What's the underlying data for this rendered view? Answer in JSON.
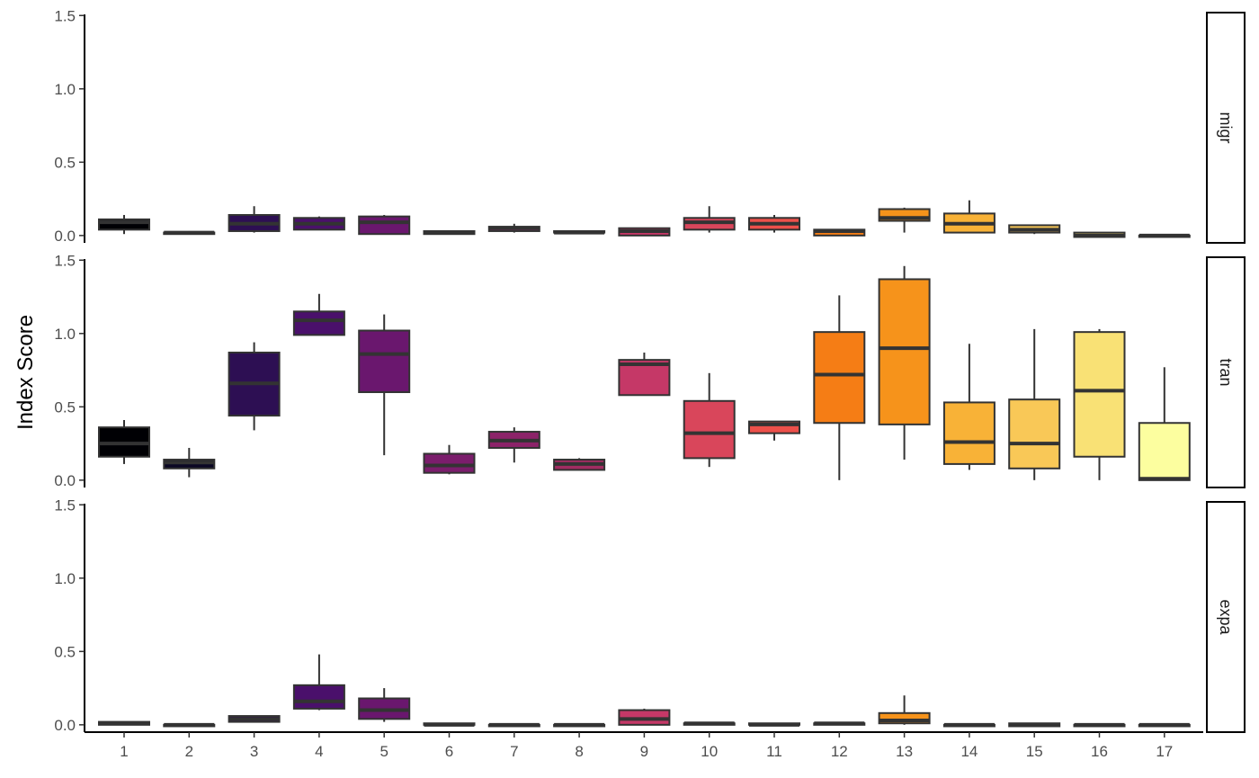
{
  "chart_data": {
    "type": "boxplot",
    "facet_layout": "vertical",
    "ylabel": "Index Score",
    "xlabel": "",
    "categories": [
      "1",
      "2",
      "3",
      "4",
      "5",
      "6",
      "7",
      "8",
      "9",
      "10",
      "11",
      "12",
      "13",
      "14",
      "15",
      "16",
      "17"
    ],
    "ylim": [
      -0.05,
      1.52
    ],
    "yticks": [
      0.0,
      0.5,
      1.0,
      1.5
    ],
    "ytick_labels": [
      "0.0",
      "0.5",
      "1.0",
      "1.5"
    ],
    "grid": false,
    "legend": "none",
    "colors": [
      "#000004",
      "#0b0724",
      "#2d0f53",
      "#4a106b",
      "#6a176e",
      "#7b1d6c",
      "#8c2369",
      "#a22c62",
      "#c53867",
      "#d9465b",
      "#ed504a",
      "#f57d15",
      "#f6931b",
      "#f8b237",
      "#f9c857",
      "#f9e175",
      "#fcfe9f"
    ],
    "facets": [
      {
        "label": "migr",
        "boxes": [
          {
            "min": 0.01,
            "q1": 0.04,
            "median": 0.09,
            "q3": 0.11,
            "max": 0.14
          },
          {
            "min": 0.01,
            "q1": 0.01,
            "median": 0.02,
            "q3": 0.02,
            "max": 0.03
          },
          {
            "min": 0.02,
            "q1": 0.03,
            "median": 0.08,
            "q3": 0.14,
            "max": 0.2
          },
          {
            "min": 0.04,
            "q1": 0.04,
            "median": 0.08,
            "q3": 0.12,
            "max": 0.13
          },
          {
            "min": 0.01,
            "q1": 0.01,
            "median": 0.09,
            "q3": 0.13,
            "max": 0.14
          },
          {
            "min": 0.01,
            "q1": 0.01,
            "median": 0.02,
            "q3": 0.03,
            "max": 0.03
          },
          {
            "min": 0.02,
            "q1": 0.03,
            "median": 0.05,
            "q3": 0.06,
            "max": 0.08
          },
          {
            "min": 0.01,
            "q1": 0.02,
            "median": 0.02,
            "q3": 0.03,
            "max": 0.03
          },
          {
            "min": 0.0,
            "q1": 0.0,
            "median": 0.03,
            "q3": 0.05,
            "max": 0.05
          },
          {
            "min": 0.02,
            "q1": 0.04,
            "median": 0.09,
            "q3": 0.12,
            "max": 0.2
          },
          {
            "min": 0.02,
            "q1": 0.04,
            "median": 0.08,
            "q3": 0.12,
            "max": 0.14
          },
          {
            "min": 0.0,
            "q1": 0.0,
            "median": 0.03,
            "q3": 0.04,
            "max": 0.04
          },
          {
            "min": 0.02,
            "q1": 0.1,
            "median": 0.12,
            "q3": 0.18,
            "max": 0.19
          },
          {
            "min": 0.02,
            "q1": 0.02,
            "median": 0.08,
            "q3": 0.15,
            "max": 0.24
          },
          {
            "min": 0.01,
            "q1": 0.02,
            "median": 0.04,
            "q3": 0.07,
            "max": 0.07
          },
          {
            "min": -0.01,
            "q1": -0.01,
            "median": 0.0,
            "q3": 0.02,
            "max": 0.02
          },
          {
            "min": -0.01,
            "q1": -0.01,
            "median": 0.0,
            "q3": 0.0,
            "max": 0.0
          }
        ]
      },
      {
        "label": "tran",
        "boxes": [
          {
            "min": 0.11,
            "q1": 0.16,
            "median": 0.25,
            "q3": 0.36,
            "max": 0.41
          },
          {
            "min": 0.02,
            "q1": 0.08,
            "median": 0.12,
            "q3": 0.14,
            "max": 0.22
          },
          {
            "min": 0.34,
            "q1": 0.44,
            "median": 0.66,
            "q3": 0.87,
            "max": 0.94
          },
          {
            "min": 0.99,
            "q1": 0.99,
            "median": 1.09,
            "q3": 1.15,
            "max": 1.27
          },
          {
            "min": 0.17,
            "q1": 0.6,
            "median": 0.86,
            "q3": 1.02,
            "max": 1.13
          },
          {
            "min": 0.04,
            "q1": 0.05,
            "median": 0.1,
            "q3": 0.18,
            "max": 0.24
          },
          {
            "min": 0.12,
            "q1": 0.22,
            "median": 0.27,
            "q3": 0.33,
            "max": 0.36
          },
          {
            "min": 0.07,
            "q1": 0.07,
            "median": 0.11,
            "q3": 0.14,
            "max": 0.15
          },
          {
            "min": 0.58,
            "q1": 0.58,
            "median": 0.79,
            "q3": 0.82,
            "max": 0.87
          },
          {
            "min": 0.09,
            "q1": 0.15,
            "median": 0.32,
            "q3": 0.54,
            "max": 0.73
          },
          {
            "min": 0.27,
            "q1": 0.32,
            "median": 0.38,
            "q3": 0.4,
            "max": 0.4
          },
          {
            "min": 0.0,
            "q1": 0.39,
            "median": 0.72,
            "q3": 1.01,
            "max": 1.26
          },
          {
            "min": 0.14,
            "q1": 0.38,
            "median": 0.9,
            "q3": 1.37,
            "max": 1.46
          },
          {
            "min": 0.07,
            "q1": 0.11,
            "median": 0.26,
            "q3": 0.53,
            "max": 0.93
          },
          {
            "min": 0.0,
            "q1": 0.08,
            "median": 0.25,
            "q3": 0.55,
            "max": 1.03
          },
          {
            "min": 0.0,
            "q1": 0.16,
            "median": 0.61,
            "q3": 1.01,
            "max": 1.03
          },
          {
            "min": 0.0,
            "q1": 0.0,
            "median": 0.01,
            "q3": 0.39,
            "max": 0.77
          }
        ]
      },
      {
        "label": "expa",
        "boxes": [
          {
            "min": 0.0,
            "q1": 0.0,
            "median": 0.01,
            "q3": 0.02,
            "max": 0.02
          },
          {
            "min": -0.01,
            "q1": -0.01,
            "median": 0.0,
            "q3": 0.0,
            "max": 0.0
          },
          {
            "min": 0.02,
            "q1": 0.02,
            "median": 0.04,
            "q3": 0.06,
            "max": 0.06
          },
          {
            "min": 0.1,
            "q1": 0.11,
            "median": 0.16,
            "q3": 0.27,
            "max": 0.48
          },
          {
            "min": 0.02,
            "q1": 0.04,
            "median": 0.1,
            "q3": 0.18,
            "max": 0.25
          },
          {
            "min": 0.0,
            "q1": 0.0,
            "median": 0.0,
            "q3": 0.01,
            "max": 0.01
          },
          {
            "min": -0.01,
            "q1": -0.01,
            "median": 0.0,
            "q3": 0.0,
            "max": 0.01
          },
          {
            "min": -0.01,
            "q1": -0.01,
            "median": 0.0,
            "q3": 0.0,
            "max": 0.0
          },
          {
            "min": 0.0,
            "q1": 0.0,
            "median": 0.04,
            "q3": 0.1,
            "max": 0.11
          },
          {
            "min": 0.0,
            "q1": 0.0,
            "median": 0.01,
            "q3": 0.01,
            "max": 0.01
          },
          {
            "min": 0.0,
            "q1": 0.0,
            "median": 0.0,
            "q3": 0.01,
            "max": 0.01
          },
          {
            "min": 0.0,
            "q1": 0.0,
            "median": 0.01,
            "q3": 0.01,
            "max": 0.01
          },
          {
            "min": 0.0,
            "q1": 0.01,
            "median": 0.03,
            "q3": 0.08,
            "max": 0.2
          },
          {
            "min": -0.01,
            "q1": -0.01,
            "median": 0.0,
            "q3": 0.0,
            "max": 0.0
          },
          {
            "min": -0.01,
            "q1": -0.01,
            "median": 0.0,
            "q3": 0.01,
            "max": 0.01
          },
          {
            "min": -0.01,
            "q1": -0.01,
            "median": 0.0,
            "q3": 0.0,
            "max": 0.0
          },
          {
            "min": -0.01,
            "q1": -0.01,
            "median": 0.0,
            "q3": 0.0,
            "max": 0.0
          }
        ]
      }
    ]
  }
}
